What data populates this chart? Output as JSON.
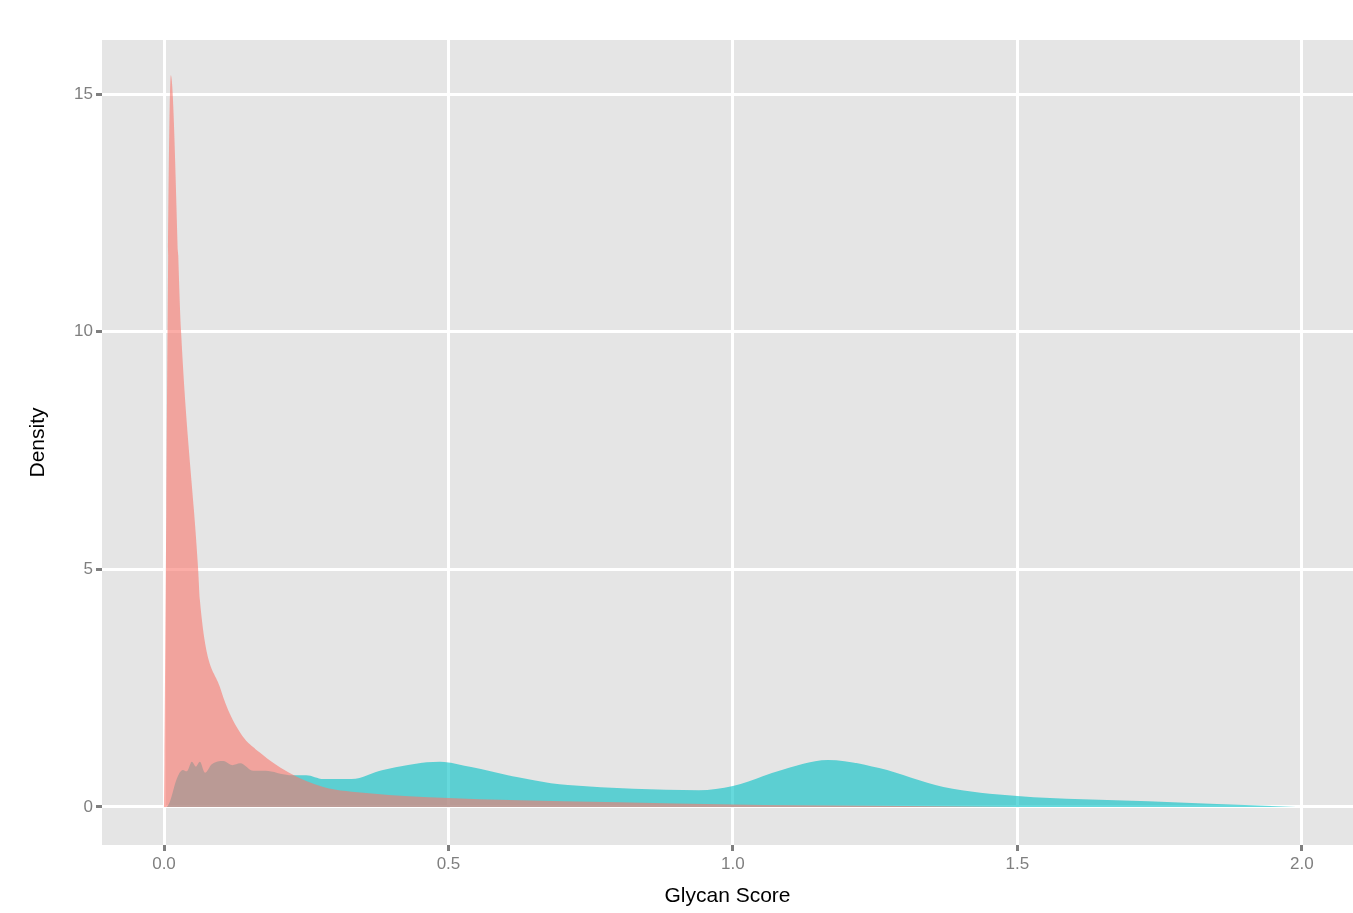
{
  "chart_data": {
    "type": "area",
    "xlabel": "Glycan Score",
    "ylabel": "Density",
    "xlim": [
      -0.109,
      2.09
    ],
    "ylim": [
      -0.8,
      16.14
    ],
    "xticks": [
      {
        "value": 0,
        "label": "0.0"
      },
      {
        "value": 0.5,
        "label": "0.5"
      },
      {
        "value": 1,
        "label": "1.0"
      },
      {
        "value": 1.5,
        "label": "1.5"
      },
      {
        "value": 2,
        "label": "2.0"
      }
    ],
    "yticks": [
      0,
      5,
      10,
      15
    ],
    "grid": true,
    "legend": false,
    "series": [
      {
        "color": "#f8766d",
        "x": [
          0,
          0.012,
          0.03,
          0.06,
          0.063,
          0.1,
          0.134,
          0.169,
          0.22,
          0.28,
          0.36,
          0.5,
          0.8,
          1.0,
          1.3,
          1.5,
          2.0
        ],
        "values": [
          0,
          15.4,
          10,
          5,
          4.36,
          2.46,
          1.56,
          1.14,
          0.72,
          0.42,
          0.29,
          0.19,
          0.1,
          0.05,
          0.02,
          0,
          0
        ]
      },
      {
        "color": "#00bfc4",
        "x": [
          0.005,
          0.01,
          0.023,
          0.033,
          0.04,
          0.049,
          0.056,
          0.063,
          0.072,
          0.084,
          0.104,
          0.12,
          0.134,
          0.157,
          0.178,
          0.22,
          0.25,
          0.28,
          0.33,
          0.385,
          0.485,
          0.54,
          0.62,
          0.68,
          0.71,
          0.94,
          1.0,
          1.086,
          1.167,
          1.257,
          1.37,
          1.5,
          1.73,
          1.99
        ],
        "values": [
          0,
          0.1,
          0.61,
          0.78,
          0.75,
          0.95,
          0.85,
          0.95,
          0.72,
          0.9,
          0.97,
          0.88,
          0.92,
          0.76,
          0.76,
          0.67,
          0.67,
          0.59,
          0.59,
          0.78,
          0.95,
          0.84,
          0.63,
          0.5,
          0.46,
          0.35,
          0.44,
          0.78,
          0.99,
          0.82,
          0.42,
          0.23,
          0.12,
          0
        ]
      }
    ]
  }
}
